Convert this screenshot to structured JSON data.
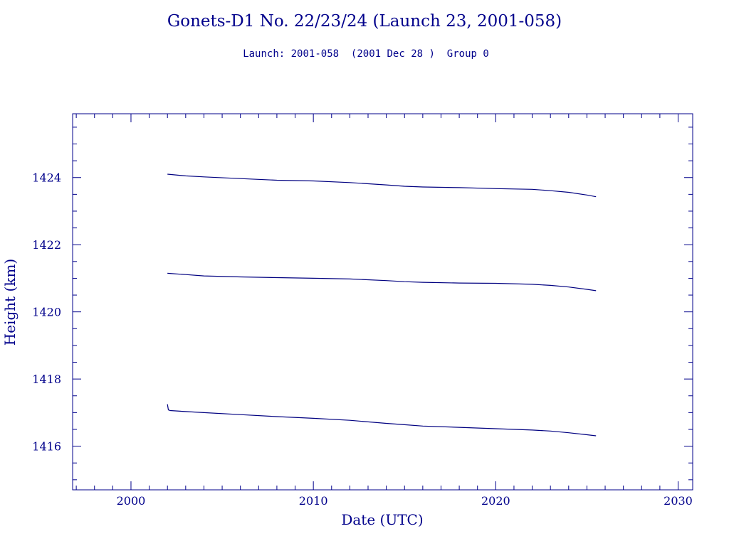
{
  "chart_data": {
    "type": "line",
    "title": "Gonets-D1 No. 22/23/24 (Launch 23, 2001-058)",
    "subtitle": "Launch: 2001-058  (2001 Dec 28 )  Group 0",
    "xlabel": "Date (UTC)",
    "ylabel": "Height (km)",
    "xlim": [
      1996.8,
      2030.8
    ],
    "ylim": [
      1414.7,
      1425.9
    ],
    "x_ticks": [
      2000,
      2010,
      2020,
      2030
    ],
    "x_tick_labels": [
      "2000",
      "2010",
      "2020",
      "2030"
    ],
    "y_ticks": [
      1416,
      1418,
      1420,
      1422,
      1424
    ],
    "y_tick_labels": [
      "1416",
      "1418",
      "1420",
      "1422",
      "1424"
    ],
    "grid": false,
    "colors": {
      "axis": "#00008b",
      "text": "#00008b",
      "line": "#000080"
    },
    "series": [
      {
        "x": [
          2002.0,
          2003,
          2004,
          2006,
          2008,
          2010,
          2012,
          2014,
          2015,
          2016,
          2018,
          2020,
          2022,
          2023,
          2024,
          2025,
          2025.5
        ],
        "y": [
          1424.1,
          1424.05,
          1424.02,
          1423.97,
          1423.92,
          1423.9,
          1423.85,
          1423.78,
          1423.74,
          1423.72,
          1423.7,
          1423.67,
          1423.65,
          1423.61,
          1423.56,
          1423.48,
          1423.43
        ]
      },
      {
        "x": [
          2002.0,
          2003,
          2004,
          2006,
          2008,
          2010,
          2012,
          2014,
          2015,
          2016,
          2018,
          2020,
          2022,
          2023,
          2024,
          2025,
          2025.5
        ],
        "y": [
          1421.15,
          1421.11,
          1421.07,
          1421.04,
          1421.02,
          1421.0,
          1420.98,
          1420.93,
          1420.9,
          1420.88,
          1420.86,
          1420.85,
          1420.82,
          1420.79,
          1420.74,
          1420.67,
          1420.63
        ]
      },
      {
        "x": [
          2002.0,
          2002.05,
          2002.15,
          2003,
          2004,
          2006,
          2008,
          2010,
          2012,
          2014,
          2015,
          2016,
          2018,
          2020,
          2022,
          2023,
          2024,
          2025,
          2025.5
        ],
        "y": [
          1417.25,
          1417.08,
          1417.06,
          1417.03,
          1417.0,
          1416.94,
          1416.88,
          1416.83,
          1416.77,
          1416.68,
          1416.64,
          1416.6,
          1416.56,
          1416.52,
          1416.48,
          1416.45,
          1416.4,
          1416.34,
          1416.31
        ]
      }
    ]
  }
}
